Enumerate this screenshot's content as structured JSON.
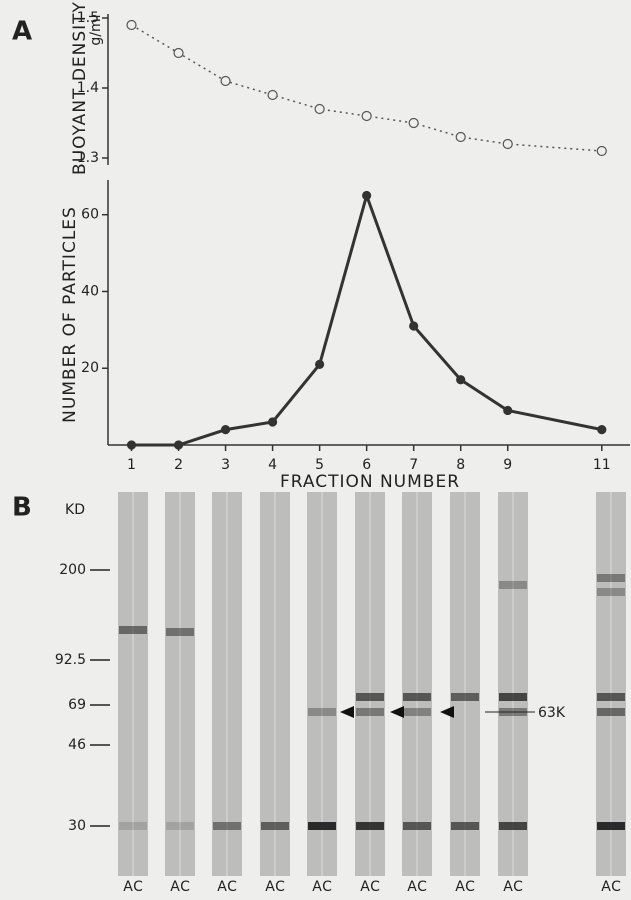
{
  "panel_labels": [
    "A",
    "B"
  ],
  "chart_data": [
    {
      "type": "line",
      "ylabel": "BUOYANT DENSITY",
      "yunit": "g/ml",
      "x": [
        1,
        2,
        3,
        4,
        5,
        6,
        7,
        8,
        9,
        11
      ],
      "series": [
        {
          "color": "#555555",
          "values": [
            1.49,
            1.45,
            1.41,
            1.39,
            1.37,
            1.36,
            1.35,
            1.33,
            1.32,
            1.31
          ]
        }
      ],
      "xlim": [
        0.5,
        11.6
      ],
      "ylim": [
        1.3,
        1.5
      ],
      "yticks": [
        1.3,
        1.4,
        1.5
      ],
      "line_style": "dotted",
      "marker": "open-circle"
    },
    {
      "type": "line",
      "ylabel": "NUMBER OF PARTICLES",
      "xlabel": "FRACTION NUMBER",
      "x": [
        1,
        2,
        3,
        4,
        5,
        6,
        7,
        8,
        9,
        11
      ],
      "series": [
        {
          "color": "#333333",
          "values": [
            0,
            0,
            4,
            6,
            21,
            65,
            31,
            17,
            9,
            4
          ]
        }
      ],
      "xlim": [
        0.5,
        11.6
      ],
      "ylim": [
        0,
        68
      ],
      "xticks": [
        1,
        2,
        3,
        4,
        5,
        6,
        7,
        8,
        9,
        11
      ],
      "yticks": [
        20,
        40,
        60
      ],
      "line_style": "solid",
      "marker": "filled-circle"
    }
  ],
  "gel": {
    "unit": "KD",
    "markers": [
      200,
      92.5,
      69,
      46,
      30
    ],
    "band_label": "63K",
    "lanes": [
      [
        "A",
        "C"
      ],
      [
        "A",
        "C"
      ],
      [
        "A",
        "C"
      ],
      [
        "A",
        "C"
      ],
      [
        "A",
        "C"
      ],
      [
        "A",
        "C"
      ],
      [
        "A",
        "C"
      ],
      [
        "A",
        "C"
      ],
      [
        "A",
        "C"
      ],
      [
        "A",
        "C"
      ]
    ]
  }
}
